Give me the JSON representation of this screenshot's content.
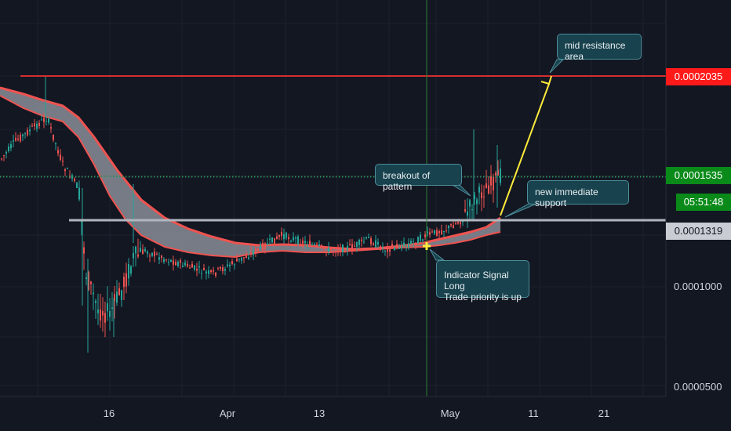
{
  "chart_data": {
    "type": "candlestick",
    "x_ticks": [
      "16",
      "Apr",
      "13",
      "May",
      "11",
      "21"
    ],
    "y_ticks": [
      "0.0001000",
      "0.0000500"
    ],
    "price_labels": {
      "resistance": "0.0002035",
      "current": "0.0001535",
      "countdown": "05:51:48",
      "support": "0.0001319"
    },
    "annotations": {
      "mid_resistance": "mid resistance area",
      "breakout": "breakout of pattern",
      "support": "new immediate support",
      "signal_line1": "Indicator Signal Long",
      "signal_line2": "Trade priority is up"
    },
    "levels": {
      "resistance": 0.0002035,
      "support": 0.0001319
    },
    "colors": {
      "background": "#131722",
      "up": "#26a69a",
      "down": "#ef5350",
      "resistance_line": "#d32f2f",
      "support_line": "#b2b5be",
      "projection_arrow": "#ffeb3b",
      "signal_marker": "#ffeb3b"
    }
  }
}
